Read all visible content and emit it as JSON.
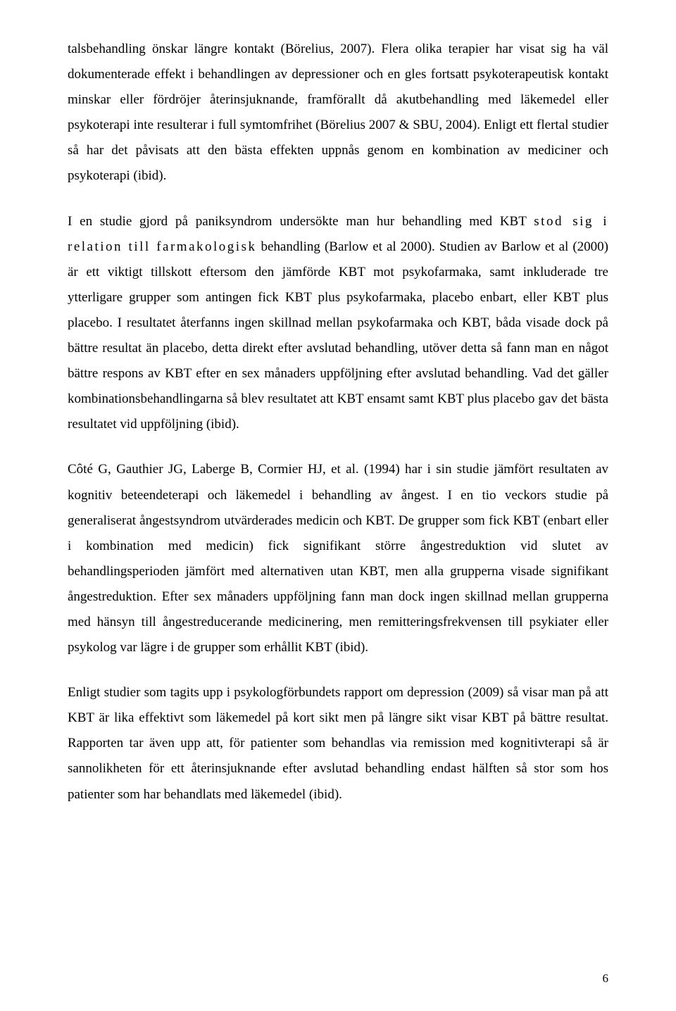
{
  "page": {
    "number": "6",
    "font_family": "Times New Roman",
    "font_size_pt": 12,
    "line_height": 1.9,
    "text_color": "#000000",
    "background_color": "#ffffff",
    "paragraphs": [
      {
        "text": "talsbehandling önskar längre kontakt (Börelius, 2007). Flera olika terapier har visat sig ha väl dokumenterade effekt i behandlingen av depressioner och en gles fortsatt psykoterapeutisk kontakt minskar eller fördröjer återinsjuknande, framförallt då akutbehandling med läkemedel eller psykoterapi inte resulterar i full symtomfrihet (Börelius 2007 & SBU, 2004). Enligt ett flertal studier så har det påvisats att den bästa effekten uppnås genom en kombination av mediciner och psykoterapi (ibid)."
      },
      {
        "pre": "I en studie gjord på paniksyndrom undersökte man hur behandling med KBT ",
        "spaced1": "stod sig i relation till farmakologisk",
        "post": " behandling (Barlow et al 2000). Studien av Barlow et al (2000) är ett viktigt tillskott eftersom den jämförde KBT mot psykofarmaka, samt inkluderade tre ytterligare grupper som antingen fick KBT plus psykofarmaka, placebo enbart, eller KBT plus placebo. I resultatet återfanns ingen skillnad mellan psykofarmaka och KBT, båda visade dock på bättre resultat än placebo, detta direkt efter avslutad behandling, utöver detta så fann man en något bättre respons av KBT efter en sex månaders uppföljning efter avslutad behandling. Vad det gäller kombinationsbehandlingarna så blev resultatet att KBT ensamt samt KBT plus placebo gav det bästa resultatet vid uppföljning (ibid)."
      },
      {
        "text": "Côté G, Gauthier JG, Laberge B, Cormier HJ, et al. (1994) har i sin studie jämfört resultaten av kognitiv beteendeterapi och läkemedel i behandling av ångest. I en tio veckors studie på generaliserat ångestsyndrom utvärderades medicin och KBT. De grupper som fick KBT (enbart eller i kombination med medicin) fick signifikant större ångestreduktion vid slutet av behandlingsperioden jämfört med alternativen utan KBT, men alla grupperna visade signifikant ångestreduktion. Efter sex månaders uppföljning fann man dock ingen skillnad mellan grupperna med hänsyn till ångestreducerande medicinering, men remitteringsfrekvensen till psykiater eller psykolog var lägre i de grupper som erhållit KBT (ibid)."
      },
      {
        "text": "Enligt studier som tagits upp i psykologförbundets rapport om depression (2009) så visar man på att KBT är lika effektivt som läkemedel på kort sikt men på längre sikt visar KBT på bättre resultat. Rapporten tar även upp att, för patienter som behandlas via remission med kognitivterapi så är sannolikheten för ett återinsjuknande efter avslutad behandling endast hälften så stor som hos patienter som har behandlats med läkemedel (ibid)."
      }
    ]
  }
}
